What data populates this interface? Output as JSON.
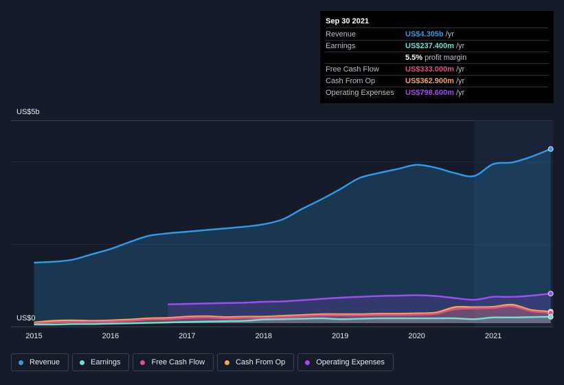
{
  "tooltip": {
    "date": "Sep 30 2021",
    "rows": [
      {
        "label": "Revenue",
        "value": "US$4.305b",
        "unit": "/yr",
        "color": "#2f9ae6"
      },
      {
        "label": "Earnings",
        "value": "US$237.400m",
        "unit": "/yr",
        "color": "#6ee0cf"
      },
      {
        "label": "",
        "value": "5.5%",
        "unit": "profit margin",
        "color": "#ffffff"
      },
      {
        "label": "Free Cash Flow",
        "value": "US$333.000m",
        "unit": "/yr",
        "color": "#e0508a"
      },
      {
        "label": "Cash From Op",
        "value": "US$362.900m",
        "unit": "/yr",
        "color": "#f0a858"
      },
      {
        "label": "Operating Expenses",
        "value": "US$798.600m",
        "unit": "/yr",
        "color": "#a24cf0"
      }
    ]
  },
  "legend": [
    {
      "label": "Revenue",
      "color": "#2f9ae6"
    },
    {
      "label": "Earnings",
      "color": "#6ee0cf"
    },
    {
      "label": "Free Cash Flow",
      "color": "#e0508a"
    },
    {
      "label": "Cash From Op",
      "color": "#f0a858"
    },
    {
      "label": "Operating Expenses",
      "color": "#a24cf0"
    }
  ],
  "chart_data": {
    "type": "area",
    "ylabel_top": "US$5b",
    "ylabel_bottom": "US$0",
    "ylim": [
      0,
      5.0
    ],
    "xlim": [
      2014.7,
      2021.78
    ],
    "x_ticks": [
      2015,
      2016,
      2017,
      2018,
      2019,
      2020,
      2021
    ],
    "x_tick_labels": [
      "2015",
      "2016",
      "2017",
      "2018",
      "2019",
      "2020",
      "2021"
    ],
    "highlight_from": 2020.75,
    "series": [
      {
        "name": "Revenue",
        "color": "#2f9ae6",
        "x": [
          2015.0,
          2015.25,
          2015.5,
          2015.75,
          2016.0,
          2016.25,
          2016.5,
          2016.75,
          2017.0,
          2017.25,
          2017.5,
          2017.75,
          2018.0,
          2018.25,
          2018.5,
          2018.75,
          2019.0,
          2019.25,
          2019.5,
          2019.75,
          2020.0,
          2020.25,
          2020.5,
          2020.75,
          2021.0,
          2021.25,
          2021.5,
          2021.75
        ],
        "values": [
          1.55,
          1.57,
          1.62,
          1.75,
          1.88,
          2.05,
          2.2,
          2.26,
          2.3,
          2.34,
          2.38,
          2.42,
          2.48,
          2.6,
          2.85,
          3.08,
          3.33,
          3.6,
          3.72,
          3.82,
          3.92,
          3.85,
          3.72,
          3.65,
          3.94,
          3.98,
          4.12,
          4.305
        ]
      },
      {
        "name": "Operating Expenses",
        "color": "#a24cf0",
        "x": [
          2016.75,
          2017.0,
          2017.25,
          2017.5,
          2017.75,
          2018.0,
          2018.25,
          2018.5,
          2018.75,
          2019.0,
          2019.25,
          2019.5,
          2019.75,
          2020.0,
          2020.25,
          2020.5,
          2020.75,
          2021.0,
          2021.25,
          2021.5,
          2021.75
        ],
        "values": [
          0.54,
          0.55,
          0.56,
          0.57,
          0.58,
          0.6,
          0.61,
          0.64,
          0.67,
          0.7,
          0.72,
          0.74,
          0.75,
          0.76,
          0.74,
          0.69,
          0.65,
          0.72,
          0.72,
          0.75,
          0.7986
        ]
      },
      {
        "name": "Cash From Op",
        "color": "#f0a858",
        "x": [
          2015.0,
          2015.25,
          2015.5,
          2015.75,
          2016.0,
          2016.25,
          2016.5,
          2016.75,
          2017.0,
          2017.25,
          2017.5,
          2017.75,
          2018.0,
          2018.25,
          2018.5,
          2018.75,
          2019.0,
          2019.25,
          2019.5,
          2019.75,
          2020.0,
          2020.25,
          2020.5,
          2020.75,
          2021.0,
          2021.25,
          2021.5,
          2021.75
        ],
        "values": [
          0.1,
          0.14,
          0.15,
          0.14,
          0.15,
          0.17,
          0.2,
          0.21,
          0.24,
          0.25,
          0.23,
          0.24,
          0.24,
          0.26,
          0.28,
          0.3,
          0.3,
          0.3,
          0.31,
          0.31,
          0.32,
          0.34,
          0.47,
          0.47,
          0.48,
          0.53,
          0.4,
          0.3629
        ]
      },
      {
        "name": "Free Cash Flow",
        "color": "#e0508a",
        "x": [
          2015.0,
          2015.25,
          2015.5,
          2015.75,
          2016.0,
          2016.25,
          2016.5,
          2016.75,
          2017.0,
          2017.25,
          2017.5,
          2017.75,
          2018.0,
          2018.25,
          2018.5,
          2018.75,
          2019.0,
          2019.25,
          2019.5,
          2019.75,
          2020.0,
          2020.25,
          2020.5,
          2020.75,
          2021.0,
          2021.25,
          2021.5,
          2021.75
        ],
        "values": [
          0.08,
          0.1,
          0.11,
          0.11,
          0.12,
          0.14,
          0.17,
          0.18,
          0.21,
          0.22,
          0.2,
          0.21,
          0.21,
          0.23,
          0.25,
          0.27,
          0.27,
          0.27,
          0.28,
          0.28,
          0.29,
          0.31,
          0.42,
          0.44,
          0.45,
          0.49,
          0.37,
          0.333
        ]
      },
      {
        "name": "Earnings",
        "color": "#6ee0cf",
        "x": [
          2015.0,
          2015.25,
          2015.5,
          2015.75,
          2016.0,
          2016.25,
          2016.5,
          2016.75,
          2017.0,
          2017.25,
          2017.5,
          2017.75,
          2018.0,
          2018.25,
          2018.5,
          2018.75,
          2019.0,
          2019.25,
          2019.5,
          2019.75,
          2020.0,
          2020.25,
          2020.5,
          2020.75,
          2021.0,
          2021.25,
          2021.5,
          2021.75
        ],
        "values": [
          0.05,
          0.05,
          0.06,
          0.06,
          0.07,
          0.08,
          0.09,
          0.1,
          0.11,
          0.12,
          0.13,
          0.14,
          0.17,
          0.18,
          0.19,
          0.2,
          0.18,
          0.19,
          0.2,
          0.2,
          0.2,
          0.2,
          0.2,
          0.18,
          0.22,
          0.22,
          0.23,
          0.2374
        ]
      }
    ]
  }
}
